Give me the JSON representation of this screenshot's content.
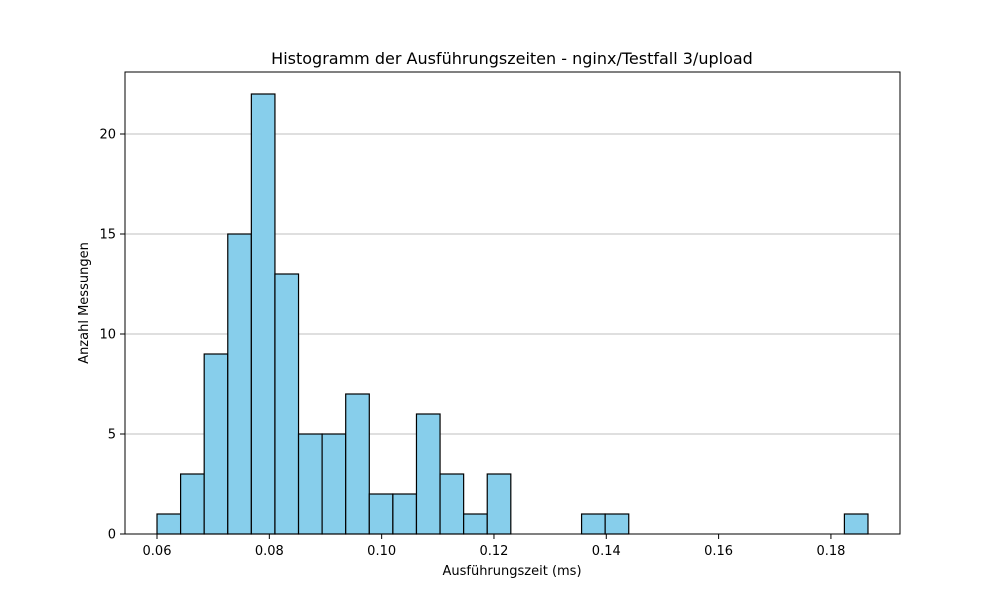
{
  "chart_data": {
    "type": "bar",
    "title": "Histogramm der Ausführungszeiten - nginx/Testfall 3/upload",
    "xlabel": "Ausführungszeit (ms)",
    "ylabel": "Anzahl Messungen",
    "xlim": [
      0.0543,
      0.1923
    ],
    "ylim": [
      0,
      23.1
    ],
    "grid": "y",
    "xticks": [
      0.06,
      0.08,
      0.1,
      0.12,
      0.14,
      0.16,
      0.18
    ],
    "xtick_labels": [
      "0.06",
      "0.08",
      "0.10",
      "0.12",
      "0.14",
      "0.16",
      "0.18"
    ],
    "yticks": [
      0,
      5,
      10,
      15,
      20
    ],
    "ytick_labels": [
      "0",
      "5",
      "10",
      "15",
      "20"
    ],
    "bar_color": "#87ceeb",
    "edge_color": "#000000",
    "bins": [
      {
        "x0": 0.06,
        "x1": 0.0642,
        "count": 1
      },
      {
        "x0": 0.0642,
        "x1": 0.0684,
        "count": 3
      },
      {
        "x0": 0.0684,
        "x1": 0.0726,
        "count": 9
      },
      {
        "x0": 0.0726,
        "x1": 0.0768,
        "count": 15
      },
      {
        "x0": 0.0768,
        "x1": 0.081,
        "count": 22
      },
      {
        "x0": 0.081,
        "x1": 0.0852,
        "count": 13
      },
      {
        "x0": 0.0852,
        "x1": 0.0894,
        "count": 5
      },
      {
        "x0": 0.0894,
        "x1": 0.0936,
        "count": 5
      },
      {
        "x0": 0.0936,
        "x1": 0.0978,
        "count": 7
      },
      {
        "x0": 0.0978,
        "x1": 0.102,
        "count": 2
      },
      {
        "x0": 0.102,
        "x1": 0.1062,
        "count": 2
      },
      {
        "x0": 0.1062,
        "x1": 0.1104,
        "count": 6
      },
      {
        "x0": 0.1104,
        "x1": 0.1146,
        "count": 3
      },
      {
        "x0": 0.1146,
        "x1": 0.1188,
        "count": 1
      },
      {
        "x0": 0.1188,
        "x1": 0.123,
        "count": 3
      },
      {
        "x0": 0.1356,
        "x1": 0.1398,
        "count": 1
      },
      {
        "x0": 0.1398,
        "x1": 0.144,
        "count": 1
      },
      {
        "x0": 0.1824,
        "x1": 0.1866,
        "count": 1
      }
    ]
  }
}
